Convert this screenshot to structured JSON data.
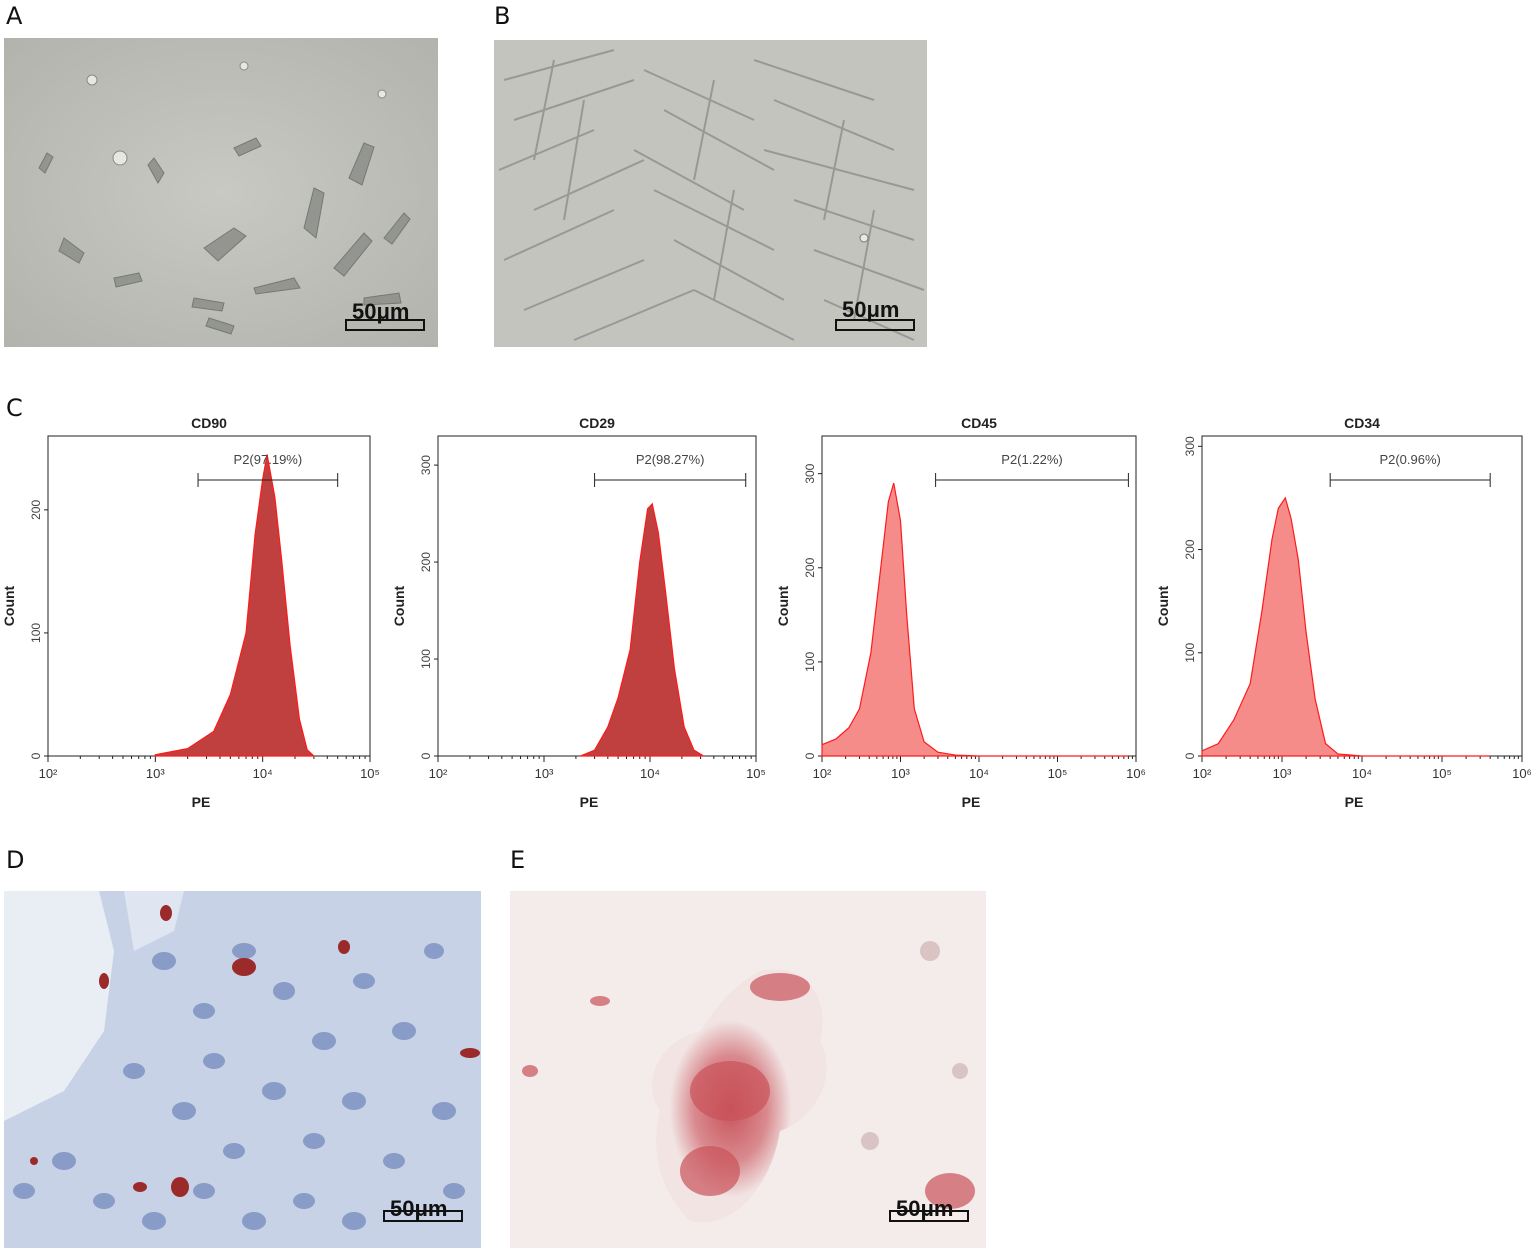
{
  "panels": {
    "a": "A",
    "b": "B",
    "c": "C",
    "d": "D",
    "e": "E"
  },
  "scalebars": {
    "a": "50μm",
    "b": "50μm",
    "d": "50μm",
    "e": "50μm"
  },
  "colors": {
    "dark_fill": "#c0403f",
    "light_fill": "#f58c8a",
    "outline": "#ff1a1a"
  },
  "chart_data": [
    {
      "type": "area",
      "title": "CD90",
      "xlabel": "PE",
      "ylabel": "Count",
      "xscale": "log",
      "xlim": [
        100,
        100000
      ],
      "ylim": [
        0,
        260
      ],
      "x_ticks": [
        "10^2",
        "10^3",
        "10^4",
        "10^5"
      ],
      "y_ticks": [
        0,
        100,
        200
      ],
      "gate": {
        "label": "P2(97.19%)",
        "range": [
          2500,
          50000
        ]
      },
      "fill": "dark",
      "series": [
        {
          "x": [
            1000,
            2000,
            3500,
            5000,
            7000,
            8500,
            10000,
            11000,
            13000,
            15000,
            18000,
            22000,
            26000,
            30000
          ],
          "y": [
            1,
            6,
            20,
            50,
            100,
            180,
            225,
            245,
            210,
            160,
            90,
            30,
            5,
            0
          ]
        }
      ]
    },
    {
      "type": "area",
      "title": "CD29",
      "xlabel": "PE",
      "ylabel": "Count",
      "xscale": "log",
      "xlim": [
        100,
        100000
      ],
      "ylim": [
        0,
        330
      ],
      "x_ticks": [
        "10^2",
        "10^3",
        "10^4",
        "10^5"
      ],
      "y_ticks": [
        0,
        100,
        200,
        300
      ],
      "gate": {
        "label": "P2(98.27%)",
        "range": [
          3000,
          80000
        ]
      },
      "fill": "dark",
      "series": [
        {
          "x": [
            2200,
            3000,
            4000,
            5000,
            6500,
            8000,
            9500,
            10500,
            12000,
            14000,
            17000,
            21000,
            26000,
            32000
          ],
          "y": [
            0,
            6,
            30,
            60,
            110,
            200,
            255,
            260,
            230,
            170,
            90,
            30,
            6,
            0
          ]
        }
      ]
    },
    {
      "type": "area",
      "title": "CD45",
      "xlabel": "PE",
      "ylabel": "Count",
      "xscale": "log",
      "xlim": [
        100,
        1000000
      ],
      "ylim": [
        0,
        340
      ],
      "x_ticks": [
        "10^2",
        "10^3",
        "10^4",
        "10^5",
        "10^6"
      ],
      "y_ticks": [
        0,
        100,
        200,
        300
      ],
      "gate": {
        "label": "P2(1.22%)",
        "range": [
          2800,
          800000
        ]
      },
      "fill": "light",
      "series": [
        {
          "x": [
            100,
            150,
            220,
            300,
            420,
            560,
            700,
            820,
            1000,
            1200,
            1500,
            2000,
            3000,
            5000,
            10000,
            800000
          ],
          "y": [
            12,
            18,
            30,
            50,
            110,
            200,
            270,
            290,
            250,
            150,
            50,
            15,
            4,
            1,
            0,
            0
          ]
        }
      ]
    },
    {
      "type": "area",
      "title": "CD34",
      "xlabel": "PE",
      "ylabel": "Count",
      "xscale": "log",
      "xlim": [
        100,
        1000000
      ],
      "ylim": [
        0,
        310
      ],
      "x_ticks": [
        "10^2",
        "10^3",
        "10^4",
        "10^5",
        "10^6"
      ],
      "y_ticks": [
        0,
        100,
        200,
        300
      ],
      "gate": {
        "label": "P2(0.96%)",
        "range": [
          4000,
          400000
        ]
      },
      "fill": "light",
      "series": [
        {
          "x": [
            100,
            160,
            250,
            400,
            560,
            750,
            900,
            1100,
            1300,
            1600,
            2000,
            2600,
            3500,
            5000,
            10000,
            400000
          ],
          "y": [
            5,
            12,
            35,
            70,
            140,
            210,
            240,
            250,
            230,
            190,
            120,
            55,
            12,
            2,
            0,
            0
          ]
        }
      ]
    }
  ]
}
